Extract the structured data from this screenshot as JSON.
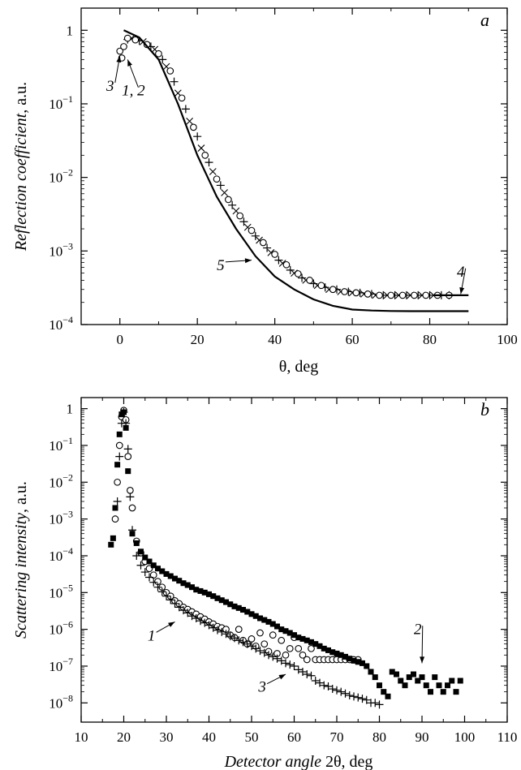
{
  "chart_data": [
    {
      "panel": "a",
      "type": "scatter",
      "x_scale": "linear",
      "y_scale": "log",
      "xlim": [
        -10,
        100
      ],
      "ylim": [
        0.0001,
        2
      ],
      "x_ticks": [
        0,
        20,
        40,
        60,
        80,
        100
      ],
      "y_ticks": [
        {
          "value": 1,
          "label": "1"
        },
        {
          "value": 0.1,
          "mant": "10",
          "exp": "−1"
        },
        {
          "value": 0.01,
          "mant": "10",
          "exp": "−2"
        },
        {
          "value": 0.001,
          "mant": "10",
          "exp": "−3"
        },
        {
          "value": 0.0001,
          "mant": "10",
          "exp": "−4"
        }
      ],
      "xlabel": "θ, deg",
      "ylabel_italic": "Reflection coefficient",
      "ylabel_plain": ", a.u.",
      "grid": false,
      "series": [
        {
          "label": "1",
          "marker": "plus",
          "x": [
            2,
            5,
            8,
            11,
            14,
            17,
            20,
            23,
            26,
            29,
            32,
            35,
            38,
            41,
            44,
            47,
            50,
            53,
            56,
            59,
            62,
            65,
            68,
            71,
            74,
            77,
            80,
            83,
            85
          ],
          "y": [
            0.75,
            0.72,
            0.6,
            0.4,
            0.2,
            0.085,
            0.036,
            0.016,
            0.0078,
            0.0042,
            0.0025,
            0.0016,
            0.0011,
            0.00075,
            0.00055,
            0.00043,
            0.00036,
            0.00032,
            0.0003,
            0.00028,
            0.00027,
            0.00026,
            0.00025,
            0.00025,
            0.00025,
            0.00025,
            0.00025,
            0.00025,
            0.00025
          ]
        },
        {
          "label": "2",
          "marker": "cross",
          "x": [
            3,
            6,
            9,
            12,
            15,
            18,
            21,
            24,
            27,
            30,
            33,
            36,
            39,
            42,
            45,
            48,
            51,
            54,
            57,
            60,
            63,
            66,
            69,
            72,
            75,
            78,
            81
          ],
          "y": [
            0.78,
            0.7,
            0.55,
            0.32,
            0.14,
            0.058,
            0.025,
            0.012,
            0.0062,
            0.0035,
            0.0021,
            0.0014,
            0.00095,
            0.00068,
            0.0005,
            0.0004,
            0.00034,
            0.0003,
            0.00028,
            0.00027,
            0.00026,
            0.00025,
            0.00025,
            0.00025,
            0.00025,
            0.00025,
            0.00025
          ]
        },
        {
          "label": "3",
          "marker": "circle",
          "x": [
            0,
            0.5,
            1,
            2,
            4,
            7,
            10,
            13,
            16,
            19,
            22,
            25,
            28,
            31,
            34,
            37,
            40,
            43,
            46,
            49,
            52,
            55,
            58,
            61,
            64,
            67,
            70,
            73,
            76,
            79,
            82,
            85
          ],
          "y": [
            0.52,
            0.42,
            0.6,
            0.78,
            0.74,
            0.64,
            0.48,
            0.28,
            0.12,
            0.048,
            0.02,
            0.0095,
            0.005,
            0.003,
            0.0019,
            0.0013,
            0.0009,
            0.00065,
            0.00049,
            0.0004,
            0.00034,
            0.0003,
            0.00028,
            0.00027,
            0.00026,
            0.00025,
            0.00025,
            0.00025,
            0.00025,
            0.00025,
            0.00025,
            0.00025
          ]
        },
        {
          "label": "4",
          "marker": "line",
          "x": [
            81,
            84,
            87,
            90
          ],
          "y": [
            0.00025,
            0.00025,
            0.00025,
            0.00025
          ]
        },
        {
          "label": "5",
          "marker": "line",
          "x": [
            1,
            5,
            10,
            15,
            20,
            25,
            30,
            35,
            40,
            45,
            50,
            55,
            60,
            65,
            70,
            75,
            80,
            85,
            90
          ],
          "y": [
            1.0,
            0.8,
            0.4,
            0.1,
            0.02,
            0.0055,
            0.002,
            0.00085,
            0.00045,
            0.0003,
            0.00022,
            0.00018,
            0.00016,
            0.000155,
            0.000153,
            0.000152,
            0.000152,
            0.000152,
            0.000152
          ]
        }
      ],
      "annotations": [
        {
          "text": "3",
          "x": -2.5,
          "y": 0.15,
          "arrow_to": [
            0,
            0.45
          ]
        },
        {
          "text": "1, 2",
          "x": 3.5,
          "y": 0.13,
          "arrow_to": [
            2,
            0.4
          ]
        },
        {
          "text": "4",
          "x": 88,
          "y": 0.00045,
          "arrow_to": [
            88,
            0.00026
          ]
        },
        {
          "text": "5",
          "x": 26,
          "y": 0.00055,
          "arrow_to": [
            34,
            0.00075
          ]
        }
      ]
    },
    {
      "panel": "b",
      "type": "scatter",
      "x_scale": "linear",
      "y_scale": "log",
      "xlim": [
        10,
        110
      ],
      "ylim": [
        3e-09,
        2
      ],
      "x_ticks": [
        10,
        20,
        30,
        40,
        50,
        60,
        70,
        80,
        90,
        100,
        110
      ],
      "y_ticks": [
        {
          "value": 1,
          "label": "1"
        },
        {
          "value": 0.1,
          "mant": "10",
          "exp": "−1"
        },
        {
          "value": 0.01,
          "mant": "10",
          "exp": "−2"
        },
        {
          "value": 0.001,
          "mant": "10",
          "exp": "−3"
        },
        {
          "value": 0.0001,
          "mant": "10",
          "exp": "−4"
        },
        {
          "value": 1e-05,
          "mant": "10",
          "exp": "−5"
        },
        {
          "value": 1e-06,
          "mant": "10",
          "exp": "−6"
        },
        {
          "value": 1e-07,
          "mant": "10",
          "exp": "−7"
        },
        {
          "value": 1e-08,
          "mant": "10",
          "exp": "−8"
        }
      ],
      "xlabel_italic": "Detector angle ",
      "xlabel_plain": "2θ, deg",
      "ylabel_italic": "Scattering intensity",
      "ylabel_plain": ", a.u.",
      "grid": false,
      "series": [
        {
          "label": "1",
          "marker": "circle",
          "x": [
            18,
            18.5,
            19,
            19.5,
            20,
            20.5,
            21,
            21.5,
            22,
            23,
            24,
            25,
            26,
            27,
            28,
            29,
            30,
            31,
            32,
            33,
            34,
            35,
            36,
            37,
            38,
            39,
            40,
            41,
            42,
            43,
            44,
            45,
            46,
            47,
            48,
            49,
            50,
            51,
            52,
            53,
            54,
            55,
            56,
            57,
            58,
            59,
            60,
            61,
            62,
            63,
            64,
            65,
            66,
            67,
            68,
            69,
            70,
            71,
            72,
            73,
            74,
            75
          ],
          "y": [
            0.001,
            0.01,
            0.1,
            0.6,
            0.9,
            0.5,
            0.05,
            0.006,
            0.002,
            0.00025,
            0.00012,
            7e-05,
            4.5e-05,
            3e-05,
            2e-05,
            1.4e-05,
            1e-05,
            8e-06,
            6e-06,
            5e-06,
            4e-06,
            3.5e-06,
            3e-06,
            2.6e-06,
            2.2e-06,
            1.9e-06,
            1.6e-06,
            1.4e-06,
            1.2e-06,
            1.1e-06,
            1e-06,
            7e-07,
            6e-07,
            1e-06,
            5e-07,
            4e-07,
            5.5e-07,
            3.5e-07,
            8e-07,
            4e-07,
            2.5e-07,
            7e-07,
            2.2e-07,
            5e-07,
            2e-07,
            3e-07,
            6e-07,
            3e-07,
            2e-07,
            1.5e-07,
            3e-07,
            1.5e-07,
            1.5e-07,
            1.5e-07,
            1.5e-07,
            1.5e-07,
            1.5e-07,
            1.5e-07,
            1.5e-07,
            1.5e-07,
            1.5e-07,
            1.5e-07
          ]
        },
        {
          "label": "2",
          "marker": "square",
          "x": [
            17,
            17.5,
            18,
            18.5,
            19,
            19.5,
            20,
            20.5,
            21,
            22,
            23,
            24,
            25,
            26,
            27,
            28,
            29,
            30,
            31,
            32,
            33,
            34,
            35,
            36,
            37,
            38,
            39,
            40,
            41,
            42,
            43,
            44,
            45,
            46,
            47,
            48,
            49,
            50,
            51,
            52,
            53,
            54,
            55,
            56,
            57,
            58,
            59,
            60,
            61,
            62,
            63,
            64,
            65,
            66,
            67,
            68,
            69,
            70,
            71,
            72,
            73,
            74,
            75,
            76,
            77,
            78,
            79,
            80,
            81,
            82,
            83,
            84,
            85,
            86,
            87,
            88,
            89,
            90,
            91,
            92,
            93,
            94,
            95,
            96,
            97,
            98,
            99
          ],
          "y": [
            0.0002,
            0.0003,
            0.002,
            0.03,
            0.2,
            0.7,
            0.8,
            0.3,
            0.02,
            0.0004,
            0.00022,
            0.00013,
            9e-05,
            7e-05,
            5.5e-05,
            4.5e-05,
            3.8e-05,
            3.2e-05,
            2.8e-05,
            2.4e-05,
            2.1e-05,
            1.8e-05,
            1.6e-05,
            1.4e-05,
            1.2e-05,
            1.1e-05,
            1e-05,
            9e-06,
            8e-06,
            7e-06,
            6.2e-06,
            5.5e-06,
            4.8e-06,
            4.2e-06,
            3.8e-06,
            3.4e-06,
            3e-06,
            2.6e-06,
            2.3e-06,
            2e-06,
            1.8e-06,
            1.6e-06,
            1.4e-06,
            1.2e-06,
            1e-06,
            9e-07,
            8e-07,
            7e-07,
            6e-07,
            5.5e-07,
            5e-07,
            4.5e-07,
            4e-07,
            3.5e-07,
            3e-07,
            2.7e-07,
            2.4e-07,
            2.2e-07,
            2e-07,
            1.8e-07,
            1.6e-07,
            1.4e-07,
            1.3e-07,
            1.2e-07,
            1e-07,
            7e-08,
            5e-08,
            3e-08,
            2e-08,
            1.5e-08,
            7e-08,
            6e-08,
            4e-08,
            3e-08,
            5e-08,
            6e-08,
            4e-08,
            5e-08,
            3e-08,
            2e-08,
            5e-08,
            3e-08,
            2e-08,
            3e-08,
            4e-08,
            2e-08,
            4e-08
          ]
        },
        {
          "label": "3",
          "marker": "plus",
          "x": [
            18.5,
            19,
            19.5,
            20,
            20.5,
            21,
            21.5,
            22,
            23,
            24,
            25,
            26,
            27,
            28,
            29,
            30,
            31,
            32,
            33,
            34,
            35,
            36,
            37,
            38,
            39,
            40,
            41,
            42,
            43,
            44,
            45,
            46,
            47,
            48,
            49,
            50,
            51,
            52,
            53,
            54,
            55,
            56,
            57,
            58,
            59,
            60,
            61,
            62,
            63,
            64,
            65,
            66,
            67,
            68,
            69,
            70,
            71,
            72,
            73,
            74,
            75,
            76,
            77,
            78,
            79,
            80
          ],
          "y": [
            0.003,
            0.05,
            0.4,
            0.8,
            0.4,
            0.08,
            0.004,
            0.0005,
            0.0001,
            5.5e-05,
            3.6e-05,
            2.6e-05,
            1.9e-05,
            1.4e-05,
            1.05e-05,
            8e-06,
            6.3e-06,
            5e-06,
            4e-06,
            3.3e-06,
            2.8e-06,
            2.3e-06,
            2e-06,
            1.7e-06,
            1.5e-06,
            1.3e-06,
            1.1e-06,
            9.5e-07,
            8.5e-07,
            7.5e-07,
            6.5e-07,
            5.8e-07,
            5e-07,
            4.5e-07,
            4e-07,
            3.5e-07,
            3e-07,
            2.6e-07,
            2.3e-07,
            2e-07,
            1.8e-07,
            1.6e-07,
            1.4e-07,
            1.2e-07,
            1.1e-07,
            1e-07,
            8e-08,
            7e-08,
            6e-08,
            5.5e-08,
            4e-08,
            3.5e-08,
            3e-08,
            2.8e-08,
            2.4e-08,
            2.2e-08,
            2e-08,
            1.8e-08,
            1.6e-08,
            1.5e-08,
            1.4e-08,
            1.3e-08,
            1.2e-08,
            1e-08,
            1e-08,
            9e-09
          ]
        }
      ],
      "annotations": [
        {
          "text": "1",
          "x": 26.5,
          "y": 5e-07,
          "arrow_to": [
            32,
            1.6e-06
          ]
        },
        {
          "text": "2",
          "x": 89,
          "y": 7.5e-07,
          "arrow_to": [
            90,
            1.2e-07
          ]
        },
        {
          "text": "3",
          "x": 52.5,
          "y": 2e-08,
          "arrow_to": [
            58,
            6e-08
          ]
        }
      ]
    }
  ]
}
